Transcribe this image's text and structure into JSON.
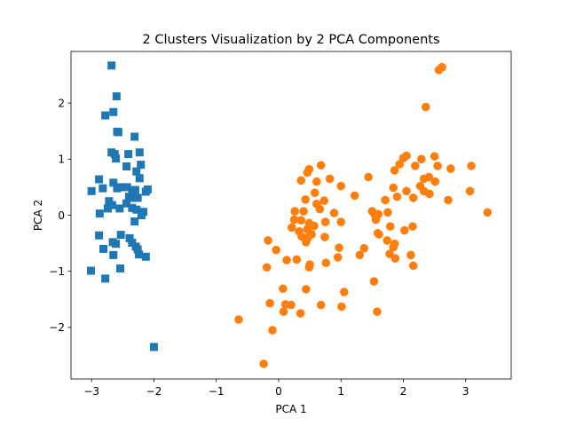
{
  "chart_data": {
    "type": "scatter",
    "title": "2 Clusters Visualization by 2 PCA Components",
    "xlabel": "PCA 1",
    "ylabel": "PCA 2",
    "xlim": [
      -3.33,
      3.73
    ],
    "ylim": [
      -2.92,
      2.92
    ],
    "xticks": [
      -3,
      -2,
      -1,
      0,
      1,
      2,
      3
    ],
    "yticks": [
      -2,
      -1,
      0,
      1,
      2
    ],
    "grid": false,
    "legend": "none",
    "series": [
      {
        "marker": "square",
        "color": "#1f77b4",
        "points": [
          [
            -2.68,
            2.67
          ],
          [
            -2.6,
            2.12
          ],
          [
            -2.78,
            1.78
          ],
          [
            -2.65,
            1.84
          ],
          [
            -2.59,
            1.49
          ],
          [
            -2.57,
            1.48
          ],
          [
            -2.31,
            1.4
          ],
          [
            -2.68,
            1.12
          ],
          [
            -2.63,
            1.09
          ],
          [
            -2.41,
            1.09
          ],
          [
            -2.23,
            1.12
          ],
          [
            -2.61,
            1.01
          ],
          [
            -2.44,
            0.87
          ],
          [
            -2.21,
            0.9
          ],
          [
            -2.28,
            0.78
          ],
          [
            -2.88,
            0.64
          ],
          [
            -2.65,
            0.58
          ],
          [
            -2.23,
            0.66
          ],
          [
            -3.0,
            0.43
          ],
          [
            -2.82,
            0.48
          ],
          [
            -2.59,
            0.48
          ],
          [
            -2.54,
            0.5
          ],
          [
            -2.43,
            0.5
          ],
          [
            -2.35,
            0.42
          ],
          [
            -2.3,
            0.45
          ],
          [
            -2.1,
            0.46
          ],
          [
            -2.13,
            0.42
          ],
          [
            -2.4,
            0.33
          ],
          [
            -2.34,
            0.31
          ],
          [
            -2.26,
            0.31
          ],
          [
            -2.72,
            0.25
          ],
          [
            -2.67,
            0.18
          ],
          [
            -2.44,
            0.21
          ],
          [
            -2.35,
            0.13
          ],
          [
            -2.74,
            0.12
          ],
          [
            -2.55,
            0.12
          ],
          [
            -2.28,
            0.1
          ],
          [
            -2.17,
            0.06
          ],
          [
            -2.87,
            0.03
          ],
          [
            -2.2,
            0.0
          ],
          [
            -2.31,
            -0.11
          ],
          [
            -2.53,
            -0.35
          ],
          [
            -2.88,
            -0.36
          ],
          [
            -2.39,
            -0.41
          ],
          [
            -2.66,
            -0.48
          ],
          [
            -2.61,
            -0.51
          ],
          [
            -2.35,
            -0.49
          ],
          [
            -2.29,
            -0.56
          ],
          [
            -2.26,
            -0.61
          ],
          [
            -2.81,
            -0.6
          ],
          [
            -2.65,
            -0.71
          ],
          [
            -2.24,
            -0.7
          ],
          [
            -2.13,
            -0.74
          ],
          [
            -3.01,
            -0.99
          ],
          [
            -2.54,
            -0.95
          ],
          [
            -2.78,
            -1.13
          ],
          [
            -2.0,
            -2.35
          ]
        ]
      },
      {
        "marker": "circle",
        "color": "#ff7f0e",
        "points": [
          [
            2.62,
            2.64
          ],
          [
            2.57,
            2.59
          ],
          [
            2.36,
            1.93
          ],
          [
            2.05,
            1.06
          ],
          [
            2.0,
            1.02
          ],
          [
            2.5,
            1.05
          ],
          [
            2.29,
            1.0
          ],
          [
            1.94,
            0.91
          ],
          [
            2.19,
            0.88
          ],
          [
            2.55,
            0.88
          ],
          [
            2.76,
            0.83
          ],
          [
            3.09,
            0.88
          ],
          [
            0.49,
            0.82
          ],
          [
            0.46,
            0.76
          ],
          [
            0.68,
            0.89
          ],
          [
            1.86,
            0.8
          ],
          [
            2.41,
            0.68
          ],
          [
            2.33,
            0.65
          ],
          [
            2.51,
            0.6
          ],
          [
            2.27,
            0.52
          ],
          [
            1.44,
            0.68
          ],
          [
            0.82,
            0.65
          ],
          [
            0.36,
            0.62
          ],
          [
            0.61,
            0.6
          ],
          [
            1.0,
            0.52
          ],
          [
            1.84,
            0.49
          ],
          [
            2.05,
            0.43
          ],
          [
            2.33,
            0.43
          ],
          [
            2.42,
            0.38
          ],
          [
            3.07,
            0.43
          ],
          [
            0.58,
            0.4
          ],
          [
            1.22,
            0.35
          ],
          [
            1.9,
            0.33
          ],
          [
            2.16,
            0.31
          ],
          [
            2.72,
            0.27
          ],
          [
            1.71,
            0.27
          ],
          [
            0.73,
            0.26
          ],
          [
            0.43,
            0.28
          ],
          [
            0.61,
            0.2
          ],
          [
            0.66,
            0.11
          ],
          [
            0.4,
            0.07
          ],
          [
            0.26,
            0.07
          ],
          [
            0.89,
            0.04
          ],
          [
            1.5,
            0.07
          ],
          [
            1.54,
            0.01
          ],
          [
            1.6,
            0.02
          ],
          [
            1.75,
            0.05
          ],
          [
            3.35,
            0.05
          ],
          [
            0.25,
            -0.08
          ],
          [
            0.36,
            -0.09
          ],
          [
            0.49,
            -0.14
          ],
          [
            0.57,
            -0.19
          ],
          [
            0.75,
            -0.12
          ],
          [
            1.0,
            -0.12
          ],
          [
            1.56,
            -0.08
          ],
          [
            1.79,
            -0.2
          ],
          [
            2.15,
            -0.2
          ],
          [
            2.02,
            -0.27
          ],
          [
            0.21,
            -0.22
          ],
          [
            0.46,
            -0.25
          ],
          [
            0.33,
            -0.29
          ],
          [
            0.37,
            -0.38
          ],
          [
            0.47,
            -0.4
          ],
          [
            0.53,
            -0.34
          ],
          [
            0.74,
            -0.39
          ],
          [
            0.44,
            -0.48
          ],
          [
            1.59,
            -0.32
          ],
          [
            1.61,
            -0.34
          ],
          [
            1.74,
            -0.45
          ],
          [
            1.86,
            -0.51
          ],
          [
            1.84,
            -0.57
          ],
          [
            -0.17,
            -0.45
          ],
          [
            0.97,
            -0.58
          ],
          [
            1.37,
            -0.59
          ],
          [
            0.95,
            -0.75
          ],
          [
            1.3,
            -0.71
          ],
          [
            1.78,
            -0.69
          ],
          [
            2.12,
            -0.71
          ],
          [
            1.87,
            -0.77
          ],
          [
            -0.04,
            -0.62
          ],
          [
            0.13,
            -0.8
          ],
          [
            0.29,
            -0.79
          ],
          [
            0.5,
            -0.88
          ],
          [
            0.76,
            -0.85
          ],
          [
            2.16,
            -0.9
          ],
          [
            -0.19,
            -0.93
          ],
          [
            0.49,
            -0.93
          ],
          [
            1.53,
            -1.18
          ],
          [
            0.07,
            -1.31
          ],
          [
            0.44,
            -1.32
          ],
          [
            1.05,
            -1.37
          ],
          [
            -0.14,
            -1.57
          ],
          [
            0.11,
            -1.59
          ],
          [
            0.2,
            -1.6
          ],
          [
            0.08,
            -1.72
          ],
          [
            0.35,
            -1.75
          ],
          [
            0.68,
            -1.6
          ],
          [
            1.01,
            -1.63
          ],
          [
            1.58,
            -1.72
          ],
          [
            -0.64,
            -1.86
          ],
          [
            -0.1,
            -2.05
          ],
          [
            -0.24,
            -2.65
          ]
        ]
      }
    ]
  }
}
